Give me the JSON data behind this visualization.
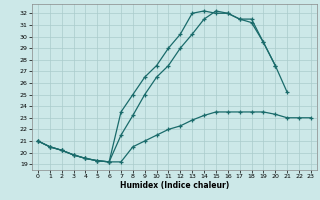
{
  "xlabel": "Humidex (Indice chaleur)",
  "bg_color": "#cce8e8",
  "grid_color": "#aacccc",
  "line_color": "#1a6b6b",
  "xlim": [
    -0.5,
    23.5
  ],
  "ylim": [
    18.5,
    32.8
  ],
  "xticks": [
    0,
    1,
    2,
    3,
    4,
    5,
    6,
    7,
    8,
    9,
    10,
    11,
    12,
    13,
    14,
    15,
    16,
    17,
    18,
    19,
    20,
    21,
    22,
    23
  ],
  "yticks": [
    19,
    20,
    21,
    22,
    23,
    24,
    25,
    26,
    27,
    28,
    29,
    30,
    31,
    32
  ],
  "line1_x": [
    0,
    1,
    2,
    3,
    4,
    5,
    6,
    7,
    8,
    9,
    10,
    11,
    12,
    13,
    14,
    15,
    16,
    17,
    18,
    19,
    20,
    21,
    22,
    23
  ],
  "line1_y": [
    21.0,
    20.5,
    20.2,
    19.8,
    19.5,
    19.3,
    19.2,
    19.2,
    20.5,
    21.0,
    21.5,
    22.0,
    22.3,
    22.8,
    23.2,
    23.5,
    23.5,
    23.5,
    23.5,
    23.5,
    23.3,
    23.0,
    23.0,
    23.0
  ],
  "line2_x": [
    0,
    1,
    2,
    3,
    4,
    5,
    6,
    7,
    8,
    9,
    10,
    11,
    12,
    13,
    14,
    15,
    16,
    17,
    18,
    19,
    20,
    21
  ],
  "line2_y": [
    21.0,
    20.5,
    20.2,
    19.8,
    19.5,
    19.3,
    19.2,
    23.5,
    25.0,
    26.5,
    27.5,
    29.0,
    30.2,
    32.0,
    32.2,
    32.0,
    32.0,
    31.5,
    31.5,
    29.5,
    27.5,
    25.2
  ],
  "line3_x": [
    0,
    1,
    2,
    3,
    4,
    5,
    6,
    7,
    8,
    9,
    10,
    11,
    12,
    13,
    14,
    15,
    16,
    17,
    18,
    19,
    20
  ],
  "line3_y": [
    21.0,
    20.5,
    20.2,
    19.8,
    19.5,
    19.3,
    19.2,
    21.5,
    23.2,
    25.0,
    26.5,
    27.5,
    29.0,
    30.2,
    31.5,
    32.2,
    32.0,
    31.5,
    31.2,
    29.5,
    27.5
  ]
}
